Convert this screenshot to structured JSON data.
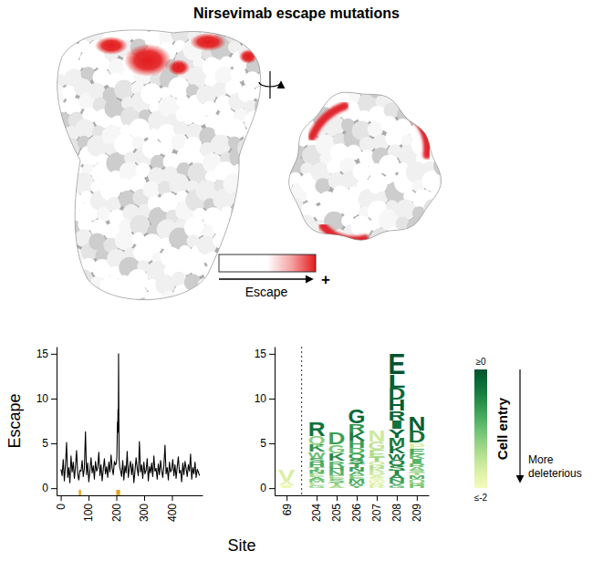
{
  "title": "Nirsevimab escape mutations",
  "escape_legend": {
    "label": "Escape",
    "high_label": "+"
  },
  "chart_data": [
    {
      "type": "line",
      "xlabel": "Site",
      "ylabel": "Escape",
      "color": "#000000",
      "x": [
        1,
        5,
        9,
        13,
        17,
        21,
        25,
        29,
        33,
        37,
        41,
        45,
        49,
        53,
        57,
        61,
        65,
        69,
        73,
        77,
        81,
        85,
        89,
        93,
        97,
        101,
        105,
        109,
        113,
        117,
        121,
        125,
        129,
        133,
        137,
        141,
        145,
        149,
        153,
        157,
        161,
        165,
        169,
        173,
        177,
        181,
        185,
        189,
        193,
        197,
        200,
        202,
        204,
        205,
        206,
        207,
        208,
        209,
        210,
        212,
        215,
        219,
        223,
        227,
        231,
        235,
        239,
        243,
        247,
        251,
        255,
        259,
        263,
        267,
        271,
        275,
        279,
        283,
        287,
        291,
        295,
        299,
        303,
        307,
        311,
        315,
        319,
        323,
        327,
        331,
        335,
        339,
        343,
        347,
        351,
        355,
        359,
        363,
        367,
        371,
        375,
        379,
        383,
        387,
        391,
        395,
        399,
        403,
        407,
        411,
        415,
        419,
        423,
        427,
        431,
        435,
        439,
        443,
        447,
        451,
        455,
        459,
        463,
        467,
        471,
        475,
        479,
        483,
        487,
        491,
        495,
        499
      ],
      "values": [
        2.1,
        1.4,
        3.2,
        0.8,
        2.6,
        5.1,
        1.2,
        2.3,
        0.6,
        3.6,
        1.8,
        2.9,
        1.1,
        2.4,
        4.2,
        1.6,
        0.9,
        2.0,
        1.9,
        3.1,
        1.3,
        2.2,
        6.3,
        1.5,
        2.8,
        0.7,
        2.0,
        3.4,
        1.7,
        2.5,
        1.0,
        3.0,
        1.9,
        2.3,
        4.0,
        1.4,
        2.6,
        0.8,
        2.1,
        3.3,
        1.6,
        2.4,
        1.2,
        2.9,
        1.8,
        3.7,
        2.2,
        1.5,
        3.0,
        2.6,
        2.8,
        3.5,
        7.4,
        6.2,
        8.8,
        6.4,
        15,
        8.0,
        3.2,
        2.4,
        2.0,
        1.3,
        3.1,
        0.9,
        2.5,
        1.7,
        4.1,
        1.2,
        2.3,
        3.0,
        1.5,
        2.7,
        0.6,
        1.9,
        3.4,
        2.2,
        1.4,
        5.2,
        1.8,
        2.6,
        1.1,
        2.9,
        1.6,
        2.0,
        3.3,
        0.8,
        2.4,
        1.7,
        2.8,
        1.3,
        3.6,
        1.9,
        2.2,
        1.0,
        2.7,
        1.5,
        3.1,
        2.0,
        1.2,
        2.5,
        4.8,
        1.6,
        2.3,
        0.9,
        2.9,
        1.8,
        2.1,
        3.2,
        1.4,
        2.6,
        1.1,
        2.4,
        3.5,
        1.7,
        2.0,
        0.7,
        2.8,
        1.5,
        3.0,
        2.2,
        1.3,
        2.6,
        1.9,
        3.8,
        1.0,
        2.3,
        1.6,
        2.9,
        1.2,
        2.1,
        1.8,
        1.4
      ],
      "xlim": [
        -15,
        510
      ],
      "ylim": [
        -0.8,
        15.8
      ],
      "xticks": [
        0,
        100,
        200,
        300,
        400
      ],
      "yticks": [
        0,
        5,
        10,
        15
      ],
      "highlighted_sites": [
        69,
        204,
        205,
        206,
        207,
        208,
        209
      ]
    },
    {
      "type": "logo",
      "categories": [
        "69",
        "204",
        "205",
        "206",
        "207",
        "208",
        "209"
      ],
      "ylim": [
        -0.8,
        15.8
      ],
      "yticks": [
        0,
        5,
        10,
        15
      ],
      "sites": [
        {
          "letters": [
            {
              "aa": "I",
              "escape": 0.3,
              "entry": -1.9
            },
            {
              "aa": "A",
              "escape": 0.4,
              "entry": -1.8
            },
            {
              "aa": "V",
              "escape": 1.3,
              "entry": -1.7
            }
          ]
        },
        {
          "letters": [
            {
              "aa": "G",
              "escape": 0.3,
              "entry": -1.2
            },
            {
              "aa": "L",
              "escape": 0.3,
              "entry": -1.5
            },
            {
              "aa": "M",
              "escape": 0.3,
              "entry": -1.1
            },
            {
              "aa": "A",
              "escape": 0.3,
              "entry": -1.0
            },
            {
              "aa": "E",
              "escape": 0.4,
              "entry": -1.3
            },
            {
              "aa": "N",
              "escape": 0.4,
              "entry": -0.9
            },
            {
              "aa": "T",
              "escape": 0.4,
              "entry": -1.0
            },
            {
              "aa": "H",
              "escape": 0.5,
              "entry": -0.8
            },
            {
              "aa": "S",
              "escape": 0.5,
              "entry": -0.7
            },
            {
              "aa": "W",
              "escape": 0.7,
              "entry": -1.0
            },
            {
              "aa": "K",
              "escape": 0.8,
              "entry": -0.6
            },
            {
              "aa": "Q",
              "escape": 0.9,
              "entry": -1.2
            },
            {
              "aa": "R",
              "escape": 1.6,
              "entry": -0.3
            }
          ]
        },
        {
          "letters": [
            {
              "aa": "A",
              "escape": 0.3,
              "entry": -1.4
            },
            {
              "aa": "T",
              "escape": 0.3,
              "entry": -1.2
            },
            {
              "aa": "S",
              "escape": 0.4,
              "entry": -1.0
            },
            {
              "aa": "E",
              "escape": 0.4,
              "entry": -1.3
            },
            {
              "aa": "N",
              "escape": 0.5,
              "entry": -0.9
            },
            {
              "aa": "H",
              "escape": 0.5,
              "entry": -0.8
            },
            {
              "aa": "R",
              "escape": 0.7,
              "entry": -0.9
            },
            {
              "aa": "K",
              "escape": 0.8,
              "entry": -0.5
            },
            {
              "aa": "G",
              "escape": 1.0,
              "entry": -1.1
            },
            {
              "aa": "D",
              "escape": 1.3,
              "entry": -0.7
            }
          ]
        },
        {
          "letters": [
            {
              "aa": "Y",
              "escape": 0.3,
              "entry": -1.0
            },
            {
              "aa": "W",
              "escape": 0.3,
              "entry": -0.9
            },
            {
              "aa": "M",
              "escape": 0.4,
              "entry": -0.8
            },
            {
              "aa": "E",
              "escape": 0.4,
              "entry": -1.1
            },
            {
              "aa": "A",
              "escape": 0.4,
              "entry": -0.9
            },
            {
              "aa": "N",
              "escape": 0.5,
              "entry": -0.7
            },
            {
              "aa": "T",
              "escape": 0.5,
              "entry": -0.8
            },
            {
              "aa": "S",
              "escape": 0.5,
              "entry": -0.6
            },
            {
              "aa": "Q",
              "escape": 0.6,
              "entry": -0.7
            },
            {
              "aa": "D",
              "escape": 0.6,
              "entry": -0.9
            },
            {
              "aa": "H",
              "escape": 0.8,
              "entry": -0.7
            },
            {
              "aa": "K",
              "escape": 0.9,
              "entry": -0.4
            },
            {
              "aa": "R",
              "escape": 1.0,
              "entry": -0.6
            },
            {
              "aa": "G",
              "escape": 1.6,
              "entry": -0.2
            }
          ]
        },
        {
          "letters": [
            {
              "aa": "R",
              "escape": 0.4,
              "entry": -1.7
            },
            {
              "aa": "W",
              "escape": 0.4,
              "entry": -1.8
            },
            {
              "aa": "S",
              "escape": 0.3,
              "entry": -1.8
            },
            {
              "aa": "A",
              "escape": 0.3,
              "entry": -1.7
            },
            {
              "aa": "D",
              "escape": 0.4,
              "entry": -1.6
            },
            {
              "aa": "K",
              "escape": 0.4,
              "entry": -1.5
            },
            {
              "aa": "H",
              "escape": 0.4,
              "entry": -1.4
            },
            {
              "aa": "Q",
              "escape": 0.4,
              "entry": -1.6
            },
            {
              "aa": "T",
              "escape": 0.5,
              "entry": -1.3
            },
            {
              "aa": "E",
              "escape": 0.8,
              "entry": -1.4
            },
            {
              "aa": "G",
              "escape": 0.9,
              "entry": -1.5
            },
            {
              "aa": "N",
              "escape": 1.2,
              "entry": -1.6
            }
          ]
        },
        {
          "letters": [
            {
              "aa": "G",
              "escape": 0.3,
              "entry": -0.9
            },
            {
              "aa": "V",
              "escape": 0.3,
              "entry": -0.8
            },
            {
              "aa": "N",
              "escape": 0.4,
              "entry": -0.7
            },
            {
              "aa": "A",
              "escape": 0.5,
              "entry": -0.6
            },
            {
              "aa": "T",
              "escape": 0.5,
              "entry": -0.5
            },
            {
              "aa": "S",
              "escape": 0.6,
              "entry": -0.6
            },
            {
              "aa": "Q",
              "escape": 0.6,
              "entry": -0.5
            },
            {
              "aa": "W",
              "escape": 0.7,
              "entry": -0.4
            },
            {
              "aa": "K",
              "escape": 0.8,
              "entry": -0.3
            },
            {
              "aa": "M",
              "escape": 0.9,
              "entry": -0.4
            },
            {
              "aa": "Y",
              "escape": 1.0,
              "entry": -0.2
            },
            {
              "aa": "I",
              "escape": 1.0,
              "entry": -0.3
            },
            {
              "aa": "R",
              "escape": 1.1,
              "entry": -0.2
            },
            {
              "aa": "H",
              "escape": 1.2,
              "entry": -0.1
            },
            {
              "aa": "D",
              "escape": 1.3,
              "entry": -0.2
            },
            {
              "aa": "L",
              "escape": 1.5,
              "entry": -0.1
            },
            {
              "aa": "E",
              "escape": 2.3,
              "entry": 0.1
            }
          ]
        },
        {
          "letters": [
            {
              "aa": "H",
              "escape": 0.5,
              "entry": -1.1
            },
            {
              "aa": "Q",
              "escape": 0.5,
              "entry": -1.2
            },
            {
              "aa": "M",
              "escape": 0.4,
              "entry": -0.9
            },
            {
              "aa": "T",
              "escape": 0.3,
              "entry": -1.3
            },
            {
              "aa": "S",
              "escape": 0.3,
              "entry": -1.2
            },
            {
              "aa": "A",
              "escape": 0.4,
              "entry": -1.1
            },
            {
              "aa": "R",
              "escape": 0.4,
              "entry": -1.0
            },
            {
              "aa": "I",
              "escape": 0.5,
              "entry": -0.9
            },
            {
              "aa": "K",
              "escape": 0.5,
              "entry": -1.0
            },
            {
              "aa": "E",
              "escape": 0.6,
              "entry": -0.8
            },
            {
              "aa": "P",
              "escape": 0.7,
              "entry": -1.7
            },
            {
              "aa": "D",
              "escape": 1.3,
              "entry": -0.3
            },
            {
              "aa": "N",
              "escape": 1.6,
              "entry": -0.1
            }
          ]
        }
      ],
      "colorbar": {
        "title": "Cell entry",
        "range": [
          -2,
          0
        ],
        "ticks": [
          {
            "value": 0,
            "label": "≥0"
          },
          {
            "value": -2,
            "label": "≤-2"
          }
        ],
        "annotation": "More deleterious"
      }
    }
  ]
}
